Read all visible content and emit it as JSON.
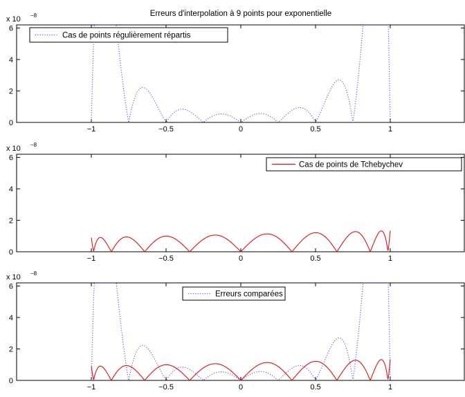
{
  "figure": {
    "title": "Erreurs d'interpolation à 9 points pour exponentielle"
  },
  "colors": {
    "regular": "#3f3fff",
    "chebyshev": "#e01010",
    "axis": "#000000",
    "background": "#ffffff"
  },
  "chart_data": [
    {
      "type": "line",
      "title": "Erreurs d'interpolation à 9 points pour exponentielle",
      "xlim": [
        -1.5,
        1.5
      ],
      "ylim": [
        0,
        6.2
      ],
      "x_ticks": [
        -1,
        -0.5,
        0,
        0.5,
        1
      ],
      "x_tick_labels": [
        "−1",
        "−0.5",
        "0",
        "0.5",
        "1"
      ],
      "y_ticks": [
        0,
        2,
        4,
        6
      ],
      "y_tick_labels": [
        "0",
        "2",
        "4",
        "6"
      ],
      "y_exponent_label": "x 10",
      "y_exponent": "−8",
      "legend_position": "top-left",
      "grid": false,
      "series": [
        {
          "name": "Cas de points régulièrement répartis",
          "style": "dotted",
          "color": "#3f3fff",
          "kind": "regular"
        }
      ]
    },
    {
      "type": "line",
      "xlim": [
        -1.5,
        1.5
      ],
      "ylim": [
        0,
        6.2
      ],
      "x_ticks": [
        -1,
        -0.5,
        0,
        0.5,
        1
      ],
      "x_tick_labels": [
        "−1",
        "−0.5",
        "0",
        "0.5",
        "1"
      ],
      "y_ticks": [
        0,
        2,
        4,
        6
      ],
      "y_tick_labels": [
        "0",
        "2",
        "4",
        "6"
      ],
      "y_exponent_label": "x 10",
      "y_exponent": "−8",
      "legend_position": "top-right",
      "grid": false,
      "series": [
        {
          "name": "Cas de points de Tchebychev",
          "style": "solid",
          "color": "#e01010",
          "kind": "chebyshev"
        }
      ]
    },
    {
      "type": "line",
      "xlim": [
        -1.5,
        1.5
      ],
      "ylim": [
        0,
        6.2
      ],
      "x_ticks": [
        -1,
        -0.5,
        0,
        0.5,
        1
      ],
      "x_tick_labels": [
        "−1",
        "−0.5",
        "0",
        "0.5",
        "1"
      ],
      "y_ticks": [
        0,
        2,
        4,
        6
      ],
      "y_tick_labels": [
        "0",
        "2",
        "4",
        "6"
      ],
      "y_exponent_label": "x 10",
      "y_exponent": "−8",
      "legend_position": "top-center",
      "grid": false,
      "series": [
        {
          "name": "Erreurs comparées",
          "style": "dotted",
          "color": "#3f3fff",
          "kind": "regular"
        },
        {
          "style": "solid",
          "color": "#e01010",
          "kind": "chebyshev"
        }
      ]
    }
  ]
}
